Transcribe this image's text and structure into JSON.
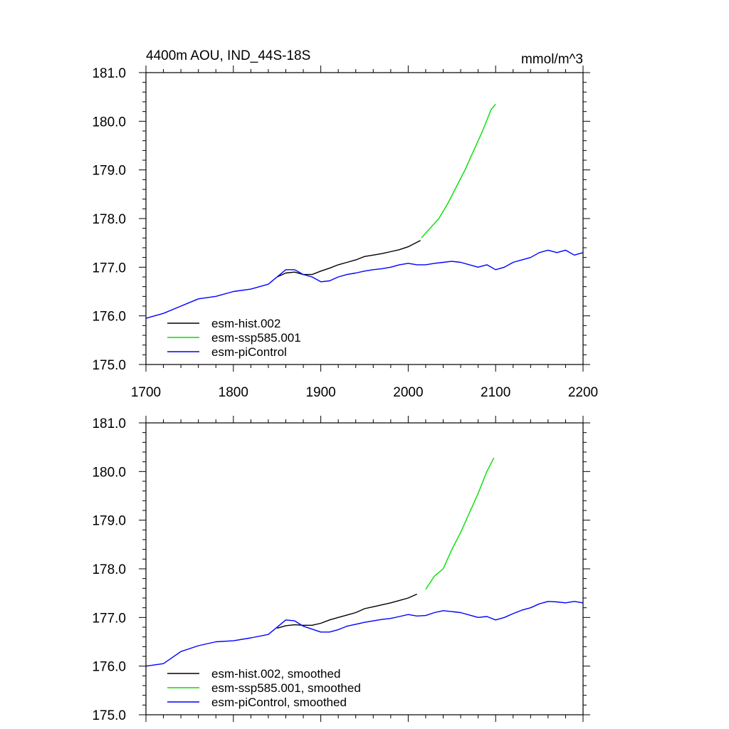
{
  "chart_data": [
    {
      "type": "line",
      "title": "4400m AOU, IND_44S-18S",
      "units": "mmol/m^3",
      "xlim": [
        1700,
        2200
      ],
      "ylim": [
        175.0,
        181.0
      ],
      "xticks": [
        1700,
        1800,
        1900,
        2000,
        2100,
        2200
      ],
      "xtick_labels": [
        "1700",
        "1800",
        "1900",
        "2000",
        "2100",
        "2200"
      ],
      "yticks": [
        175.0,
        176.0,
        177.0,
        178.0,
        179.0,
        180.0,
        181.0
      ],
      "ytick_labels": [
        "175.0",
        "176.0",
        "177.0",
        "178.0",
        "179.0",
        "180.0",
        "181.0"
      ],
      "legend_position": "bottom-left",
      "series": [
        {
          "name": "esm-hist.002",
          "color": "#000000",
          "x": [
            1850,
            1860,
            1870,
            1880,
            1890,
            1900,
            1910,
            1920,
            1930,
            1940,
            1950,
            1960,
            1970,
            1980,
            1990,
            2000,
            2014
          ],
          "y": [
            176.8,
            176.88,
            176.9,
            176.85,
            176.85,
            176.92,
            176.98,
            177.05,
            177.1,
            177.15,
            177.22,
            177.25,
            177.28,
            177.32,
            177.36,
            177.42,
            177.55
          ]
        },
        {
          "name": "esm-ssp585.001",
          "color": "#00e000",
          "x": [
            2015,
            2025,
            2035,
            2045,
            2055,
            2065,
            2075,
            2085,
            2095,
            2100
          ],
          "y": [
            177.6,
            177.8,
            178.0,
            178.3,
            178.65,
            179.0,
            179.4,
            179.8,
            180.25,
            180.35
          ]
        },
        {
          "name": "esm-piControl",
          "color": "#0000ff",
          "x": [
            1700,
            1720,
            1740,
            1760,
            1780,
            1800,
            1820,
            1840,
            1860,
            1870,
            1880,
            1890,
            1900,
            1910,
            1920,
            1930,
            1940,
            1950,
            1960,
            1970,
            1980,
            1990,
            2000,
            2010,
            2020,
            2030,
            2040,
            2050,
            2060,
            2070,
            2080,
            2090,
            2100,
            2110,
            2120,
            2130,
            2140,
            2150,
            2160,
            2170,
            2180,
            2190,
            2200
          ],
          "y": [
            175.95,
            176.05,
            176.2,
            176.35,
            176.4,
            176.5,
            176.55,
            176.65,
            176.95,
            176.95,
            176.85,
            176.8,
            176.7,
            176.72,
            176.8,
            176.85,
            176.88,
            176.92,
            176.95,
            176.97,
            177.0,
            177.05,
            177.08,
            177.05,
            177.05,
            177.08,
            177.1,
            177.12,
            177.1,
            177.05,
            177.0,
            177.05,
            176.95,
            177.0,
            177.1,
            177.15,
            177.2,
            177.3,
            177.35,
            177.3,
            177.35,
            177.25,
            177.3
          ]
        }
      ]
    },
    {
      "type": "line",
      "title": "",
      "units": "",
      "xlim": [
        1700,
        2200
      ],
      "ylim": [
        175.0,
        181.0
      ],
      "xticks": [
        1700,
        1800,
        1900,
        2000,
        2100,
        2200
      ],
      "xtick_labels": [],
      "yticks": [
        175.0,
        176.0,
        177.0,
        178.0,
        179.0,
        180.0,
        181.0
      ],
      "ytick_labels": [
        "175.0",
        "176.0",
        "177.0",
        "178.0",
        "179.0",
        "180.0",
        "181.0"
      ],
      "legend_position": "bottom-left",
      "series": [
        {
          "name": "esm-hist.002, smoothed",
          "color": "#000000",
          "x": [
            1850,
            1860,
            1870,
            1880,
            1890,
            1900,
            1910,
            1920,
            1930,
            1940,
            1950,
            1960,
            1970,
            1980,
            1990,
            2000,
            2010
          ],
          "y": [
            176.78,
            176.83,
            176.85,
            176.84,
            176.84,
            176.88,
            176.95,
            177.0,
            177.05,
            177.1,
            177.18,
            177.22,
            177.26,
            177.3,
            177.35,
            177.4,
            177.48
          ]
        },
        {
          "name": "esm-ssp585.001, smoothed",
          "color": "#00e000",
          "x": [
            2020,
            2030,
            2040,
            2050,
            2060,
            2070,
            2080,
            2090,
            2098
          ],
          "y": [
            177.58,
            177.85,
            178.0,
            178.4,
            178.75,
            179.15,
            179.55,
            180.0,
            180.28
          ]
        },
        {
          "name": "esm-piControl, smoothed",
          "color": "#0000ff",
          "x": [
            1700,
            1720,
            1740,
            1760,
            1780,
            1800,
            1820,
            1840,
            1860,
            1870,
            1880,
            1890,
            1900,
            1910,
            1920,
            1930,
            1940,
            1950,
            1960,
            1970,
            1980,
            1990,
            2000,
            2010,
            2020,
            2030,
            2040,
            2050,
            2060,
            2070,
            2080,
            2090,
            2100,
            2110,
            2120,
            2130,
            2140,
            2150,
            2160,
            2170,
            2180,
            2190,
            2200
          ],
          "y": [
            176.0,
            176.05,
            176.3,
            176.42,
            176.5,
            176.52,
            176.58,
            176.65,
            176.95,
            176.93,
            176.82,
            176.76,
            176.7,
            176.7,
            176.75,
            176.82,
            176.86,
            176.9,
            176.93,
            176.96,
            176.98,
            177.02,
            177.06,
            177.03,
            177.04,
            177.1,
            177.14,
            177.12,
            177.1,
            177.05,
            177.0,
            177.02,
            176.95,
            177.0,
            177.08,
            177.15,
            177.2,
            177.28,
            177.33,
            177.32,
            177.3,
            177.33,
            177.3
          ]
        }
      ]
    }
  ]
}
